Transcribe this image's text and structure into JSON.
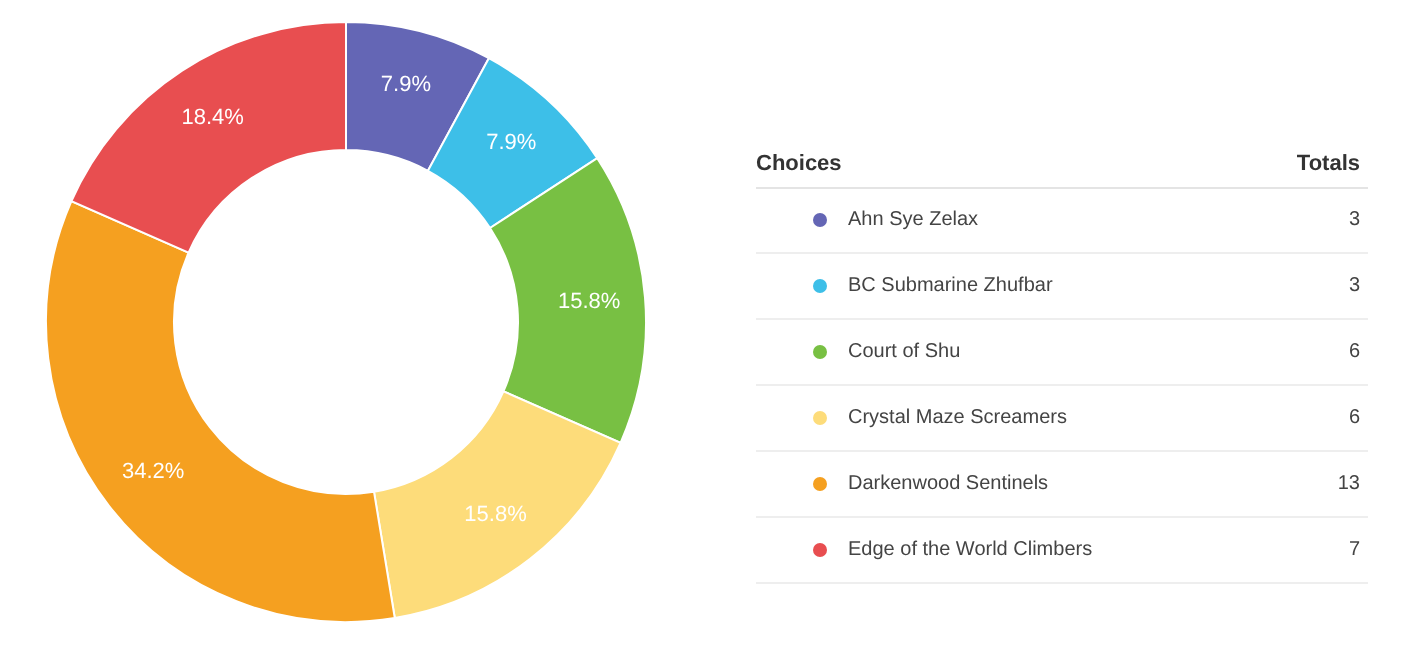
{
  "chart_data": {
    "type": "donut",
    "legend_title": "Choices",
    "annotations": [
      "Totals"
    ],
    "categories": [
      "Ahn Sye Zelax",
      "BC Submarine Zhufbar",
      "Court of Shu",
      "Crystal Maze Screamers",
      "Darkenwood Sentinels",
      "Edge of the World Climbers"
    ],
    "values": [
      7.9,
      7.9,
      15.8,
      15.8,
      34.2,
      18.4
    ],
    "value_labels": [
      "7.9%",
      "7.9%",
      "15.8%",
      "15.8%",
      "34.2%",
      "18.4%"
    ],
    "totals": [
      "3",
      "3",
      "6",
      "6",
      "13",
      "7"
    ],
    "colors": [
      "#6466b5",
      "#3dbfe8",
      "#78c043",
      "#fddc7a",
      "#f5a020",
      "#e84e50"
    ],
    "legend": "right"
  }
}
